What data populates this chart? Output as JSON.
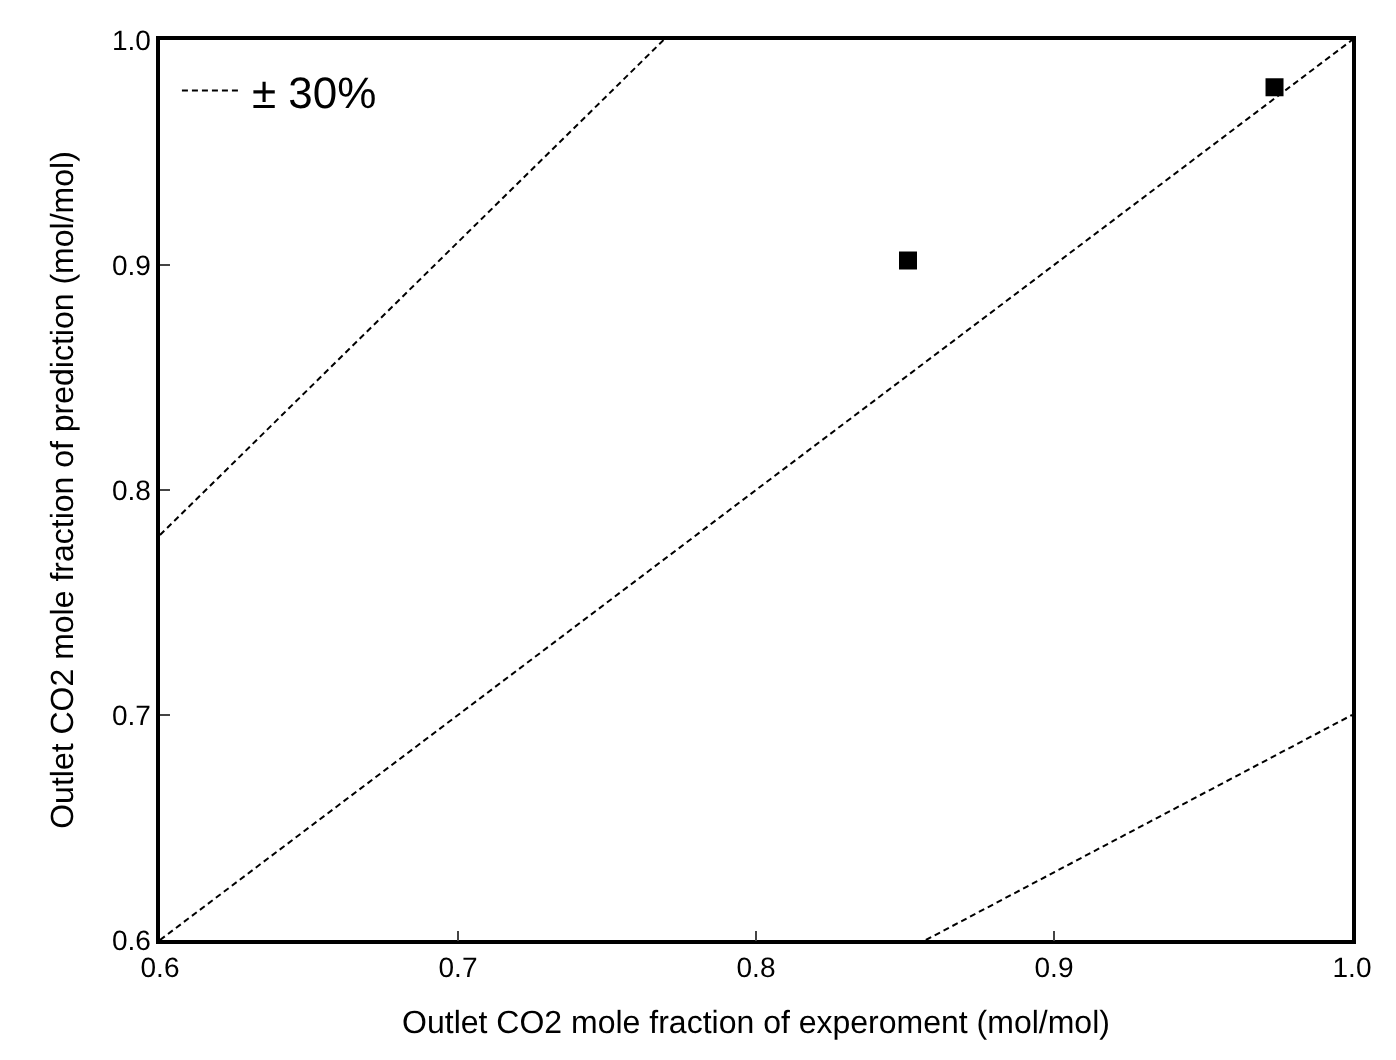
{
  "chart_data": {
    "type": "scatter",
    "xlabel": "Outlet CO2 mole fraction of experoment (mol/mol)",
    "ylabel": "Outlet CO2 mole fraction of prediction (mol/mol)",
    "xlim": [
      0.6,
      1.0
    ],
    "ylim": [
      0.6,
      1.0
    ],
    "xticks": [
      0.6,
      0.7,
      0.8,
      0.9,
      {
        "value": 1.0,
        "label": "1.0"
      }
    ],
    "yticks": [
      0.6,
      0.7,
      0.8,
      0.9,
      {
        "value": 1.0,
        "label": "1.0"
      }
    ],
    "legend": "top left",
    "series": [
      {
        "name": "± 30%",
        "type": "line",
        "color": "#000000",
        "line_style": "dashed",
        "marker": "none",
        "x": [
          0.6,
          0.769
        ],
        "values": [
          0.78,
          1.0
        ]
      },
      {
        "type": "line",
        "color": "#000000",
        "line_style": "dashed",
        "marker": "none",
        "x": [
          0.6,
          1.0
        ],
        "values": [
          0.6,
          1.0
        ]
      },
      {
        "type": "line",
        "color": "#000000",
        "line_style": "dashed",
        "marker": "none",
        "x": [
          0.857,
          1.0
        ],
        "values": [
          0.6,
          0.7
        ]
      },
      {
        "color": "#000000",
        "marker": "square",
        "x": [
          0.851,
          0.974
        ],
        "values": [
          0.902,
          0.979
        ]
      }
    ]
  }
}
